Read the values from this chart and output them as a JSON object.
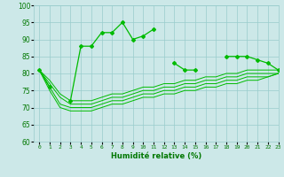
{
  "x": [
    0,
    1,
    2,
    3,
    4,
    5,
    6,
    7,
    8,
    9,
    10,
    11,
    12,
    13,
    14,
    15,
    16,
    17,
    18,
    19,
    20,
    21,
    22,
    23
  ],
  "main_line": [
    81,
    76,
    null,
    72,
    88,
    88,
    92,
    92,
    95,
    90,
    91,
    93,
    null,
    83,
    81,
    81,
    null,
    null,
    85,
    85,
    85,
    84,
    83,
    81
  ],
  "smooth_lines": [
    [
      81,
      78,
      74,
      72,
      72,
      72,
      73,
      74,
      74,
      75,
      76,
      76,
      77,
      77,
      78,
      78,
      79,
      79,
      80,
      80,
      81,
      81,
      81,
      81
    ],
    [
      81,
      77,
      73,
      71,
      71,
      71,
      72,
      73,
      73,
      74,
      75,
      75,
      76,
      76,
      77,
      77,
      78,
      78,
      79,
      79,
      80,
      80,
      80,
      80
    ],
    [
      81,
      76,
      71,
      70,
      70,
      70,
      71,
      72,
      72,
      73,
      74,
      74,
      75,
      75,
      76,
      76,
      77,
      77,
      78,
      78,
      79,
      79,
      79,
      80
    ],
    [
      81,
      75,
      70,
      69,
      69,
      69,
      70,
      71,
      71,
      72,
      73,
      73,
      74,
      74,
      75,
      75,
      76,
      76,
      77,
      77,
      78,
      78,
      79,
      80
    ]
  ],
  "ylim": [
    60,
    100
  ],
  "xlim": [
    -0.5,
    23
  ],
  "yticks": [
    60,
    65,
    70,
    75,
    80,
    85,
    90,
    95,
    100
  ],
  "xticks": [
    0,
    1,
    2,
    3,
    4,
    5,
    6,
    7,
    8,
    9,
    10,
    11,
    12,
    13,
    14,
    15,
    16,
    17,
    18,
    19,
    20,
    21,
    22,
    23
  ],
  "xlabel": "Humidité relative (%)",
  "bg_color": "#cce8e8",
  "grid_color": "#99cccc",
  "line_color": "#00bb00"
}
